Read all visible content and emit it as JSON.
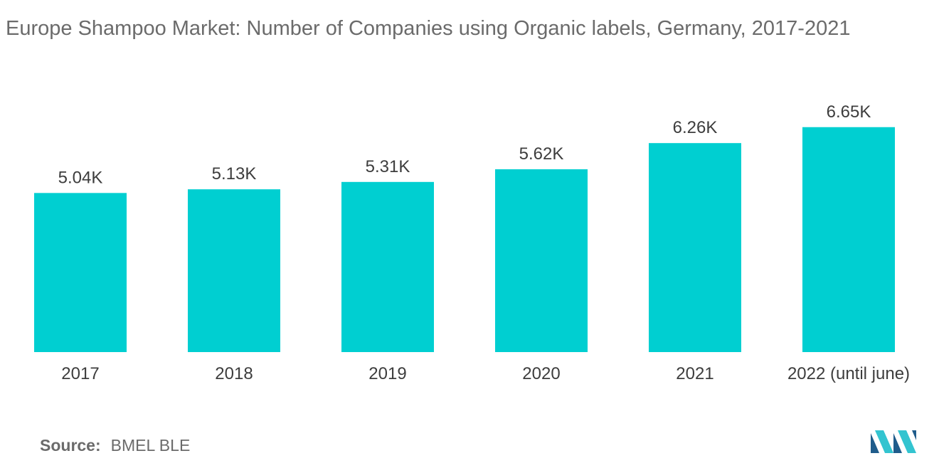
{
  "title": "Europe Shampoo Market: Number of Companies using Organic labels, Germany, 2017-2021",
  "source": {
    "label": "Source:",
    "value": "BMEL BLE"
  },
  "colors": {
    "bar": "#00cfd1",
    "text": "#3d3d3d",
    "muted": "#6b6b6b",
    "logo_dark": "#1f5c8b",
    "logo_light": "#33c4d0"
  },
  "logo": {
    "icon": "mordor-intelligence-logo-icon"
  },
  "chart_data": {
    "type": "bar",
    "title": "Europe Shampoo Market: Number of Companies using Organic labels, Germany, 2017-2021",
    "categories": [
      "2017",
      "2018",
      "2019",
      "2020",
      "2021",
      "2022 (until june)"
    ],
    "values": [
      5040,
      5130,
      5310,
      5620,
      6260,
      6650
    ],
    "value_labels": [
      "5.04K",
      "5.13K",
      "5.31K",
      "5.62K",
      "6.26K",
      "6.65K"
    ],
    "xlabel": "",
    "ylabel": "",
    "grid": false,
    "legend": "none"
  }
}
